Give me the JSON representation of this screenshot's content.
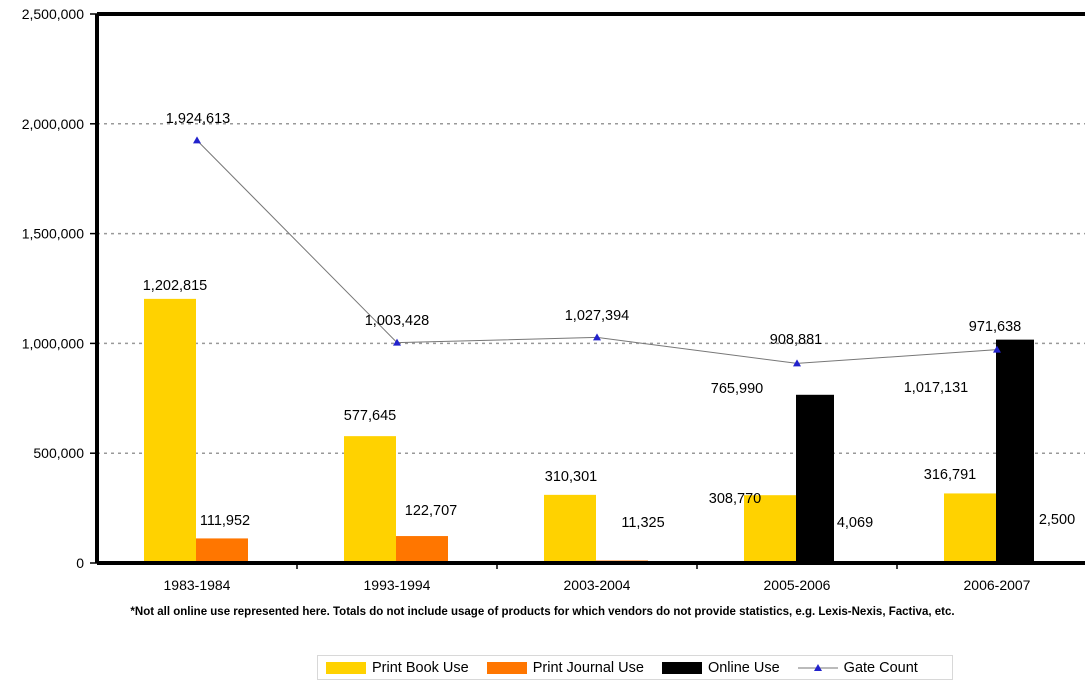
{
  "footnote": "*Not all online use represented here. Totals do not include usage of products for which vendors do not provide statistics, e.g. Lexis-Nexis, Factiva, etc.",
  "colors": {
    "print_book": "#FFD200",
    "print_journal": "#FF7600",
    "online": "#000000",
    "gate": "#2222CC",
    "gate_line": "#777777",
    "grid": "#999999"
  },
  "chart_data": {
    "type": "bar",
    "categories": [
      "1983-1984",
      "1993-1994",
      "2003-2004",
      "2005-2006",
      "2006-2007"
    ],
    "ylim": [
      0,
      2500000
    ],
    "yticks": [
      0,
      500000,
      1000000,
      1500000,
      2000000,
      2500000
    ],
    "ytick_labels": [
      "0",
      "500,000",
      "1,000,000",
      "1,500,000",
      "2,000,000",
      "2,500,000"
    ],
    "grid": "horizontal dashed",
    "legend_position": "bottom",
    "series": [
      {
        "name": "Print Book Use",
        "type": "bar",
        "values": [
          1202815,
          577645,
          310301,
          308770,
          316791
        ],
        "labels": [
          "1,202,815",
          "577,645",
          "310,301",
          "308,770",
          "316,791"
        ]
      },
      {
        "name": "Print Journal Use",
        "type": "bar",
        "values": [
          111952,
          122707,
          11325,
          4069,
          2500
        ],
        "labels": [
          "111,952",
          "122,707",
          "11,325",
          "4,069",
          "2,500"
        ]
      },
      {
        "name": "Online Use",
        "type": "bar",
        "values": [
          null,
          null,
          null,
          765990,
          1017131
        ],
        "labels": [
          "",
          "",
          "",
          "765,990",
          "1,017,131"
        ]
      },
      {
        "name": "Gate Count",
        "type": "line",
        "values": [
          1924613,
          1003428,
          1027394,
          908881,
          971638
        ],
        "labels": [
          "1,924,613",
          "1,003,428",
          "1,027,394",
          "908,881",
          "971,638"
        ]
      }
    ]
  }
}
